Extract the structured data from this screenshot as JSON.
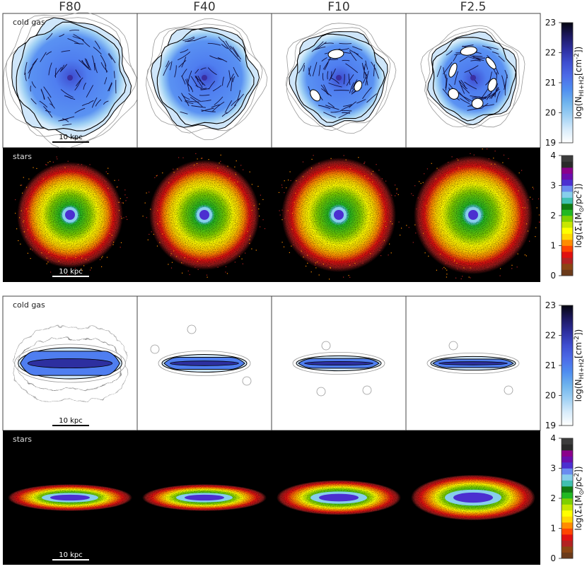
{
  "columns": [
    {
      "title": "F80"
    },
    {
      "title": "F40"
    },
    {
      "title": "F10"
    },
    {
      "title": "F2.5"
    }
  ],
  "panels": {
    "gas_label": "cold gas",
    "stars_label": "stars",
    "scale_bar_label": "10 kpc"
  },
  "colorbars": {
    "gas": {
      "ticks": [
        "19",
        "20",
        "21",
        "22",
        "23"
      ],
      "label_main": "log(N",
      "label_sub": "HI+H2",
      "label_unit": "[cm",
      "label_sup": "-2",
      "label_end": "])",
      "colors": [
        "#ffffff",
        "#d8ecfb",
        "#9fd0f4",
        "#6fb4ee",
        "#4f8ef0",
        "#4c6be8",
        "#3e4ed0",
        "#2d2fa0",
        "#1c1860",
        "#050510"
      ]
    },
    "stars": {
      "ticks": [
        "0",
        "1",
        "2",
        "3",
        "4"
      ],
      "label_main": "log(Σ",
      "label_sub": "*",
      "label_unit": "[M",
      "label_sub2": "⊙",
      "label_mid": "/pc",
      "label_sup": "2",
      "label_end": "])",
      "colors": [
        "#6b3a1a",
        "#8b4513",
        "#b22222",
        "#e01010",
        "#ff4500",
        "#ff8c00",
        "#ffd700",
        "#ffff00",
        "#c8e600",
        "#7fd000",
        "#22b822",
        "#107a10",
        "#40c0b0",
        "#87ceeb",
        "#6a8cf0",
        "#4b2fd0",
        "#6a0dad",
        "#8b008b",
        "#2a2a2a",
        "#3c3c3c"
      ]
    }
  },
  "galaxies": {
    "face_on": [
      {
        "gas_radius": 0.42,
        "holes": 0
      },
      {
        "gas_radius": 0.37,
        "holes": 0
      },
      {
        "gas_radius": 0.34,
        "holes": 3
      },
      {
        "gas_radius": 0.32,
        "holes": 6
      }
    ],
    "edge_on": [
      {
        "disk_half_length": 0.37,
        "disk_half_height": 0.1
      },
      {
        "disk_half_length": 0.3,
        "disk_half_height": 0.05
      },
      {
        "disk_half_length": 0.3,
        "disk_half_height": 0.04
      },
      {
        "disk_half_length": 0.3,
        "disk_half_height": 0.035
      }
    ],
    "stars_edge_thickness": [
      0.1,
      0.1,
      0.13,
      0.17
    ]
  }
}
